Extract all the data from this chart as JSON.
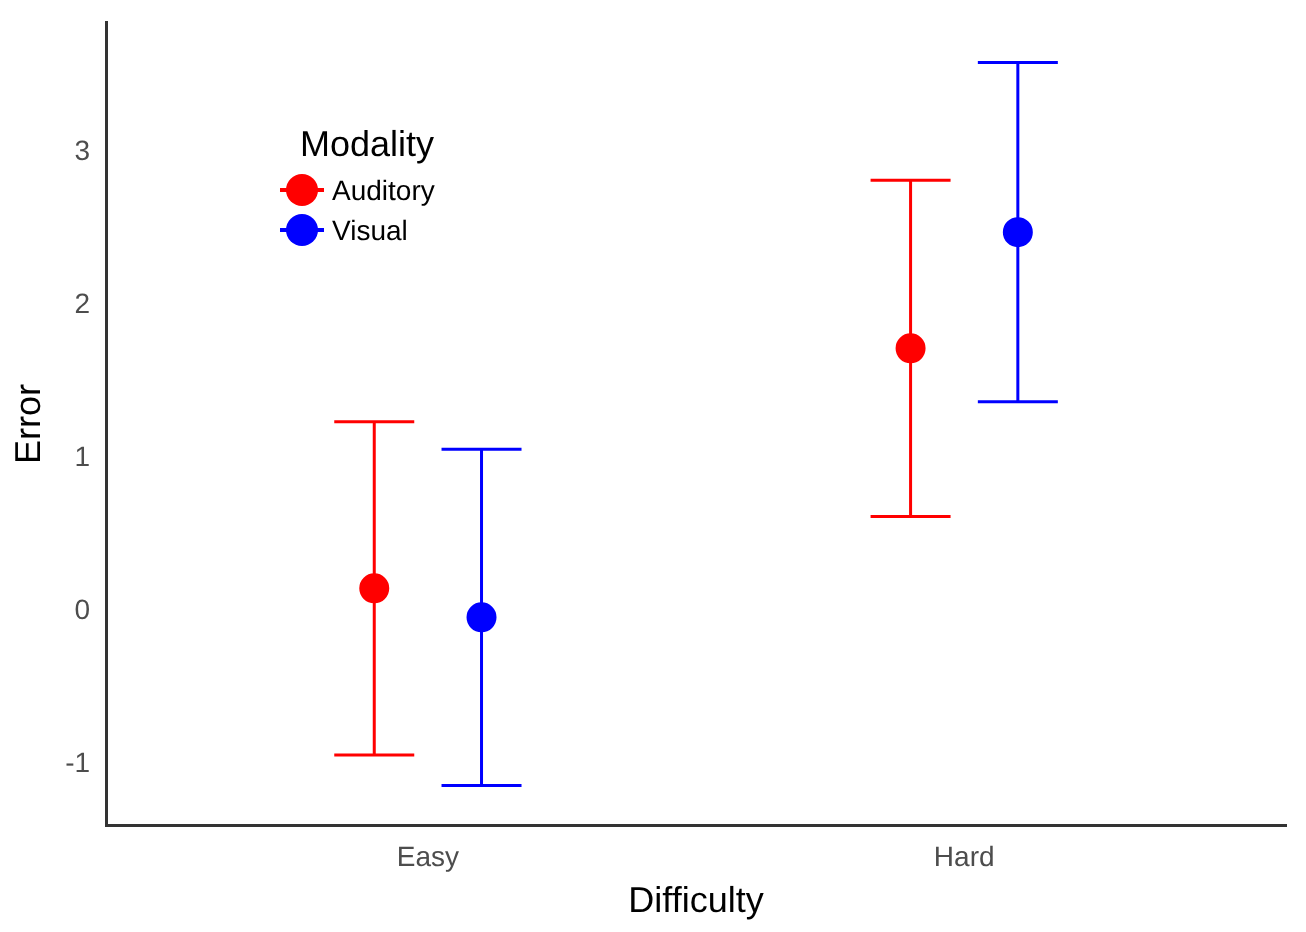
{
  "chart_data": {
    "type": "scatter",
    "xlabel": "Difficulty",
    "ylabel": "Error",
    "legend_title": "Modality",
    "legend": "top left",
    "grid": false,
    "marker": "circle",
    "categories": [
      "Easy",
      "Hard"
    ],
    "ylim": [
      -1.4,
      3.85
    ],
    "yticks": [
      -1,
      0,
      1,
      2,
      3
    ],
    "series": [
      {
        "name": "Auditory",
        "color": "#ff0000",
        "values": [
          0.15,
          1.72
        ],
        "errors": [
          1.09,
          1.1
        ]
      },
      {
        "name": "Visual",
        "color": "#0000ff",
        "values": [
          -0.04,
          2.48
        ],
        "errors": [
          1.1,
          1.11
        ]
      }
    ]
  }
}
